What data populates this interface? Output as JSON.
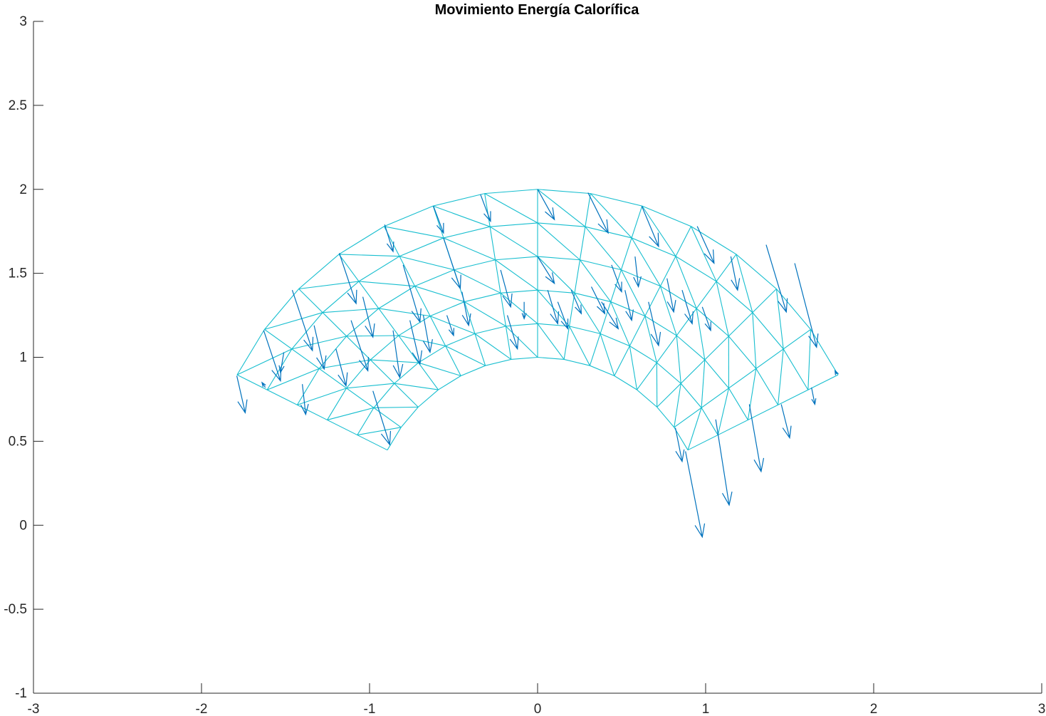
{
  "chart_data": {
    "type": "quiver",
    "title": "Movimiento Energía Calorífica",
    "xlabel": "",
    "ylabel": "",
    "xlim": [
      -3,
      3
    ],
    "ylim": [
      -1,
      3
    ],
    "xticks": [
      -3,
      -2,
      -1,
      0,
      1,
      2,
      3
    ],
    "yticks": [
      -1,
      -0.5,
      0,
      0.5,
      1,
      1.5,
      2,
      2.5,
      3
    ],
    "xtick_labels": [
      "-3",
      "-2",
      "-1",
      "0",
      "1",
      "2",
      "3"
    ],
    "ytick_labels": [
      "-1",
      "-0.5",
      "0",
      "0.5",
      "1",
      "1.5",
      "2",
      "2.5",
      "3"
    ],
    "grid": false,
    "box": "left-bottom axes only",
    "mesh": {
      "description": "annular sector mesh",
      "center": [
        0,
        0
      ],
      "radii": [
        1.0,
        1.2,
        1.4,
        1.6,
        1.8,
        2.0
      ],
      "angle_start_deg": 26.6,
      "angle_end_deg": 153.4,
      "angular_divisions": 14,
      "diagonals": true,
      "color": "#17becf"
    },
    "vector_field": {
      "color": "#0072bd",
      "arrows": [
        {
          "x": -1.79,
          "y": 0.89,
          "u": 0.05,
          "v": -0.22
        },
        {
          "x": -1.62,
          "y": 0.82,
          "u": -0.02,
          "v": 0.03
        },
        {
          "x": -1.63,
          "y": 1.16,
          "u": 0.1,
          "v": -0.3
        },
        {
          "x": -1.51,
          "y": 1.03,
          "u": -0.02,
          "v": -0.12
        },
        {
          "x": -1.46,
          "y": 1.4,
          "u": 0.12,
          "v": -0.36
        },
        {
          "x": -1.4,
          "y": 0.84,
          "u": 0.02,
          "v": -0.18
        },
        {
          "x": -1.33,
          "y": 1.19,
          "u": 0.06,
          "v": -0.26
        },
        {
          "x": -1.2,
          "y": 1.05,
          "u": 0.06,
          "v": -0.22
        },
        {
          "x": -1.18,
          "y": 1.62,
          "u": 0.1,
          "v": -0.3
        },
        {
          "x": -1.11,
          "y": 1.22,
          "u": 0.1,
          "v": -0.3
        },
        {
          "x": -1.04,
          "y": 1.36,
          "u": 0.06,
          "v": -0.24
        },
        {
          "x": -0.98,
          "y": 0.8,
          "u": 0.1,
          "v": -0.32
        },
        {
          "x": -0.91,
          "y": 1.79,
          "u": 0.05,
          "v": -0.16
        },
        {
          "x": -0.86,
          "y": 1.16,
          "u": 0.04,
          "v": -0.28
        },
        {
          "x": -0.8,
          "y": 1.55,
          "u": 0.1,
          "v": -0.34
        },
        {
          "x": -0.76,
          "y": 1.22,
          "u": 0.06,
          "v": -0.26
        },
        {
          "x": -0.68,
          "y": 1.25,
          "u": 0.04,
          "v": -0.22
        },
        {
          "x": -0.62,
          "y": 1.9,
          "u": 0.06,
          "v": -0.16
        },
        {
          "x": -0.56,
          "y": 1.71,
          "u": 0.1,
          "v": -0.3
        },
        {
          "x": -0.54,
          "y": 1.25,
          "u": 0.04,
          "v": -0.12
        },
        {
          "x": -0.45,
          "y": 1.39,
          "u": 0.04,
          "v": -0.2
        },
        {
          "x": -0.34,
          "y": 1.97,
          "u": 0.06,
          "v": -0.16
        },
        {
          "x": -0.22,
          "y": 1.52,
          "u": 0.06,
          "v": -0.22
        },
        {
          "x": -0.18,
          "y": 1.25,
          "u": 0.06,
          "v": -0.2
        },
        {
          "x": -0.08,
          "y": 1.33,
          "u": 0.0,
          "v": -0.1
        },
        {
          "x": 0.0,
          "y": 2.0,
          "u": 0.1,
          "v": -0.18
        },
        {
          "x": 0.0,
          "y": 1.6,
          "u": 0.1,
          "v": -0.16
        },
        {
          "x": 0.06,
          "y": 1.4,
          "u": 0.06,
          "v": -0.2
        },
        {
          "x": 0.12,
          "y": 1.33,
          "u": 0.06,
          "v": -0.16
        },
        {
          "x": 0.2,
          "y": 1.4,
          "u": 0.06,
          "v": -0.14
        },
        {
          "x": 0.3,
          "y": 1.98,
          "u": 0.12,
          "v": -0.24
        },
        {
          "x": 0.32,
          "y": 1.42,
          "u": 0.08,
          "v": -0.16
        },
        {
          "x": 0.38,
          "y": 1.33,
          "u": 0.1,
          "v": -0.16
        },
        {
          "x": 0.44,
          "y": 1.55,
          "u": 0.06,
          "v": -0.16
        },
        {
          "x": 0.52,
          "y": 1.4,
          "u": 0.04,
          "v": -0.18
        },
        {
          "x": 0.58,
          "y": 1.6,
          "u": 0.02,
          "v": -0.18
        },
        {
          "x": 0.62,
          "y": 1.9,
          "u": 0.1,
          "v": -0.24
        },
        {
          "x": 0.66,
          "y": 1.33,
          "u": 0.06,
          "v": -0.26
        },
        {
          "x": 0.77,
          "y": 1.47,
          "u": 0.04,
          "v": -0.2
        },
        {
          "x": 0.86,
          "y": 1.4,
          "u": 0.06,
          "v": -0.2
        },
        {
          "x": 0.95,
          "y": 1.78,
          "u": 0.1,
          "v": -0.22
        },
        {
          "x": 0.98,
          "y": 1.3,
          "u": 0.05,
          "v": -0.14
        },
        {
          "x": 1.15,
          "y": 1.6,
          "u": 0.04,
          "v": -0.2
        },
        {
          "x": 0.82,
          "y": 0.58,
          "u": 0.04,
          "v": -0.2
        },
        {
          "x": 0.88,
          "y": 0.44,
          "u": 0.1,
          "v": -0.51
        },
        {
          "x": 1.06,
          "y": 0.63,
          "u": 0.08,
          "v": -0.51
        },
        {
          "x": 1.26,
          "y": 0.72,
          "u": 0.07,
          "v": -0.4
        },
        {
          "x": 1.36,
          "y": 1.67,
          "u": 0.12,
          "v": -0.4
        },
        {
          "x": 1.53,
          "y": 1.56,
          "u": 0.13,
          "v": -0.5
        },
        {
          "x": 1.45,
          "y": 0.72,
          "u": 0.05,
          "v": -0.2
        },
        {
          "x": 1.63,
          "y": 0.82,
          "u": 0.02,
          "v": -0.1
        },
        {
          "x": 1.78,
          "y": 0.9,
          "u": -0.01,
          "v": 0.02
        }
      ]
    }
  }
}
